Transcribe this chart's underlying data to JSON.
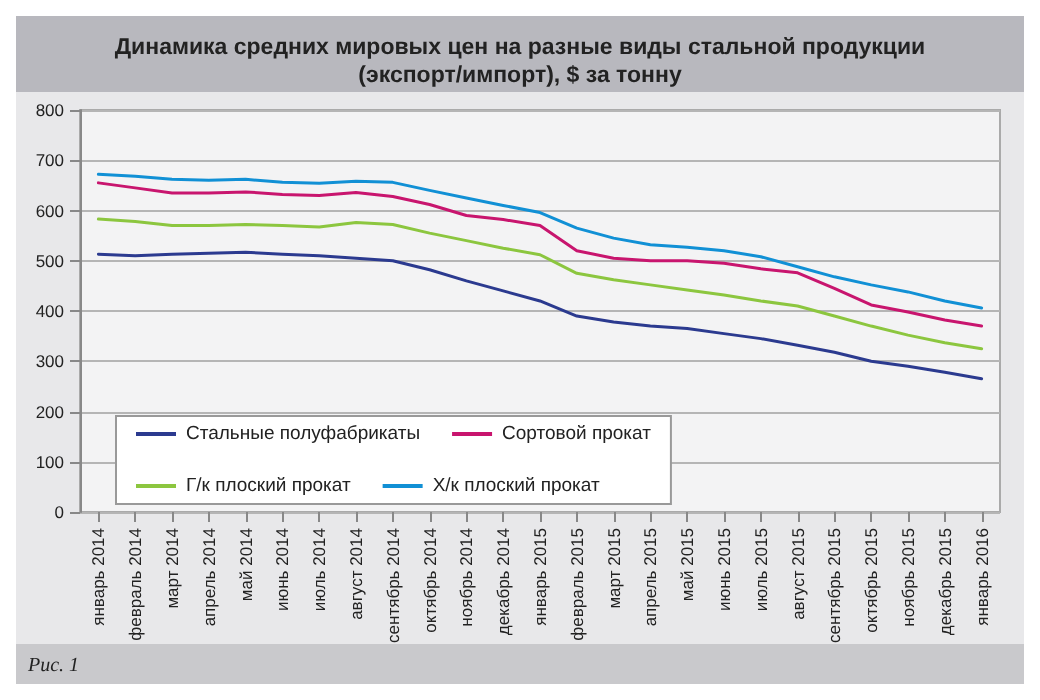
{
  "chart_data": {
    "type": "line",
    "title": "Динамика средних мировых цен на разные виды стальной продукции\n(экспорт/импорт), $ за тонну",
    "categories": [
      "январь 2014",
      "февраль 2014",
      "март 2014",
      "апрель 2014",
      "май 2014",
      "июнь 2014",
      "июль 2014",
      "август 2014",
      "сентябрь 2014",
      "октябрь 2014",
      "ноябрь 2014",
      "декабрь 2014",
      "январь 2015",
      "февраль 2015",
      "март 2015",
      "апрель 2015",
      "май 2015",
      "июнь 2015",
      "июль 2015",
      "август 2015",
      "сентябрь 2015",
      "октябрь 2015",
      "ноябрь 2015",
      "декабрь 2015",
      "январь 2016"
    ],
    "series": [
      {
        "name": "Стальные полуфабрикаты",
        "color": "#2b3a8f",
        "values": [
          513,
          510,
          513,
          515,
          517,
          513,
          510,
          505,
          500,
          482,
          460,
          440,
          420,
          390,
          378,
          370,
          365,
          355,
          345,
          332,
          318,
          300,
          290,
          278,
          265
        ]
      },
      {
        "name": "Сортовой прокат",
        "color": "#c8156e",
        "values": [
          655,
          645,
          635,
          635,
          637,
          632,
          630,
          636,
          628,
          612,
          590,
          582,
          570,
          520,
          505,
          500,
          500,
          495,
          484,
          476,
          445,
          412,
          398,
          382,
          370
        ]
      },
      {
        "name": "Г/к плоский прокат",
        "color": "#8cc63f",
        "values": [
          583,
          578,
          570,
          570,
          572,
          570,
          567,
          576,
          572,
          555,
          540,
          525,
          512,
          475,
          462,
          452,
          442,
          432,
          420,
          410,
          390,
          370,
          352,
          337,
          325
        ]
      },
      {
        "name": "Х/к плоский прокат",
        "color": "#1190d5",
        "values": [
          672,
          668,
          662,
          660,
          662,
          656,
          654,
          658,
          656,
          640,
          625,
          610,
          596,
          565,
          545,
          532,
          527,
          520,
          508,
          488,
          468,
          452,
          438,
          420,
          406
        ]
      }
    ],
    "ylim": [
      0,
      800
    ],
    "yticks": [
      0,
      100,
      200,
      300,
      400,
      500,
      600,
      700,
      800
    ],
    "grid": "y",
    "legend": "bottom left",
    "marker": "none",
    "line_style": "solid",
    "annotations": [
      "Рис. 1"
    ]
  }
}
